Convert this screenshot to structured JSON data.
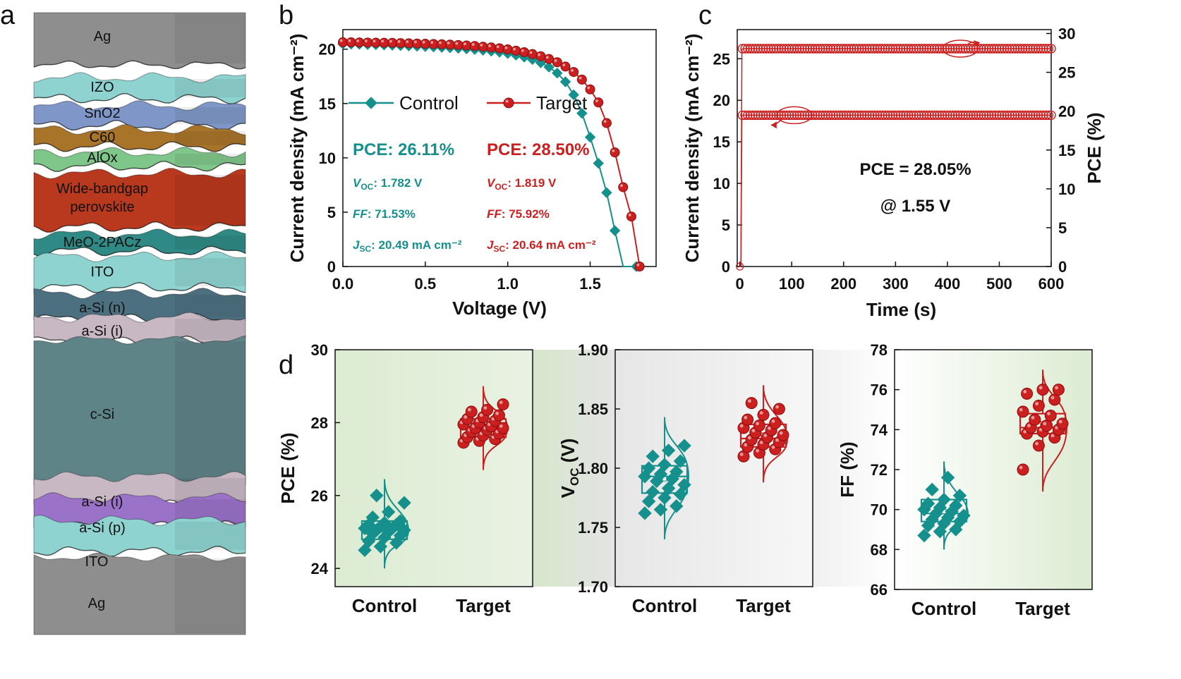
{
  "panel_letters": [
    "a",
    "b",
    "c",
    "d"
  ],
  "stack": {
    "layers": [
      {
        "name": "Ag",
        "color": "#8e8e8e"
      },
      {
        "name": "IZO",
        "color": "#8fd3d0"
      },
      {
        "name": "SnO2",
        "color": "#7f97c8"
      },
      {
        "name": "C60",
        "color": "#a8742a"
      },
      {
        "name": "AlOx",
        "color": "#7fc68a"
      },
      {
        "name": "Wide-bandgap perovskite",
        "color": "#b8391e"
      },
      {
        "name": "MeO-2PACz",
        "color": "#2f8a86"
      },
      {
        "name": "ITO",
        "color": "#8fd3d0"
      },
      {
        "name": "a-Si (n)",
        "color": "#4d7080"
      },
      {
        "name": "a-Si (i)",
        "color": "#c8b8c4"
      },
      {
        "name": "c-Si",
        "color": "#5f8488"
      },
      {
        "name": "a-Si (i)",
        "color": "#c8b8c4"
      },
      {
        "name": "a-Si (p)",
        "color": "#9a73c9"
      },
      {
        "name": "ITO",
        "color": "#8fd3d0"
      },
      {
        "name": "Ag",
        "color": "#8e8e8e"
      }
    ]
  },
  "colors": {
    "control": "#16908c",
    "target": "#cc1f1f"
  },
  "chart_data": [
    {
      "panel": "b",
      "type": "line",
      "xlabel": "Voltage (V)",
      "ylabel": "Current density (mA cm⁻²)",
      "xlim": [
        0,
        1.9
      ],
      "ylim": [
        0,
        21.8
      ],
      "xticks": [
        0.0,
        0.5,
        1.0,
        1.5
      ],
      "yticks": [
        0,
        5,
        10,
        15,
        20
      ],
      "legend_position": "upper-center",
      "series": [
        {
          "name": "Control",
          "marker": "diamond",
          "x": [
            0,
            0.05,
            0.1,
            0.15,
            0.2,
            0.25,
            0.3,
            0.35,
            0.4,
            0.45,
            0.5,
            0.55,
            0.6,
            0.65,
            0.7,
            0.75,
            0.8,
            0.85,
            0.9,
            0.95,
            1.0,
            1.05,
            1.1,
            1.15,
            1.2,
            1.25,
            1.3,
            1.35,
            1.4,
            1.45,
            1.5,
            1.55,
            1.6,
            1.65,
            1.7,
            1.75,
            1.78
          ],
          "y": [
            20.49,
            20.47,
            20.45,
            20.43,
            20.41,
            20.39,
            20.36,
            20.33,
            20.3,
            20.27,
            20.24,
            20.21,
            20.17,
            20.13,
            20.08,
            20.03,
            19.97,
            19.9,
            19.82,
            19.72,
            19.6,
            19.45,
            19.27,
            19.05,
            18.75,
            18.35,
            17.8,
            17.0,
            15.8,
            14.1,
            11.9,
            9.5,
            6.8,
            3.3,
            0.0,
            0.0,
            0.0
          ]
        },
        {
          "name": "Target",
          "marker": "circle",
          "x": [
            0,
            0.05,
            0.1,
            0.15,
            0.2,
            0.25,
            0.3,
            0.35,
            0.4,
            0.45,
            0.5,
            0.55,
            0.6,
            0.65,
            0.7,
            0.75,
            0.8,
            0.85,
            0.9,
            0.95,
            1.0,
            1.05,
            1.1,
            1.15,
            1.2,
            1.25,
            1.3,
            1.35,
            1.4,
            1.45,
            1.5,
            1.55,
            1.6,
            1.65,
            1.7,
            1.75,
            1.8
          ],
          "y": [
            20.64,
            20.63,
            20.62,
            20.61,
            20.6,
            20.59,
            20.58,
            20.56,
            20.54,
            20.52,
            20.5,
            20.48,
            20.45,
            20.42,
            20.38,
            20.34,
            20.29,
            20.23,
            20.16,
            20.08,
            19.98,
            19.86,
            19.72,
            19.55,
            19.35,
            19.1,
            18.8,
            18.4,
            17.9,
            17.2,
            16.3,
            15.1,
            13.2,
            10.5,
            7.3,
            4.6,
            0.0
          ]
        }
      ],
      "annotations": {
        "control": {
          "pce": "PCE: 26.11%",
          "voc": ": 1.782 V",
          "ff": ": 71.53%",
          "jsc": ": 20.49 mA cm⁻²"
        },
        "target": {
          "pce": "PCE: 28.50%",
          "voc": ": 1.819 V",
          "ff": ": 75.92%",
          "jsc": ": 20.64 mA cm⁻²"
        },
        "voc_sym": "V",
        "voc_sub": "OC",
        "ff_sym": "FF",
        "jsc_sym": "J",
        "jsc_sub": "SC"
      }
    },
    {
      "panel": "c",
      "type": "line",
      "xlabel": "Time (s)",
      "ylabel": "Current density (mA cm⁻²)",
      "y2label": "PCE (%)",
      "xlim": [
        -5,
        600
      ],
      "ylim": [
        0,
        28.5
      ],
      "y2lim": [
        0,
        30.5
      ],
      "xticks": [
        0,
        100,
        200,
        300,
        400,
        500,
        600
      ],
      "yticks": [
        0,
        5,
        10,
        15,
        20,
        25
      ],
      "y2ticks": [
        0,
        5,
        10,
        15,
        20,
        25,
        30
      ],
      "series": [
        {
          "name": "Current density",
          "axis": "left",
          "value": 18.2,
          "x_start": 5,
          "x_end": 600
        },
        {
          "name": "PCE",
          "axis": "right",
          "value": 28.05,
          "x_start": 5,
          "x_end": 600
        }
      ],
      "annotation_line1": "PCE = 28.05%",
      "annotation_line2": "@ 1.55 V"
    },
    {
      "panel": "d",
      "type": "box",
      "plots": [
        {
          "ylabel": "PCE (%)",
          "ylim": [
            23.5,
            30
          ],
          "yticks": [
            24,
            26,
            28,
            30
          ],
          "tick_decimals": 0,
          "categories": [
            "Control",
            "Target"
          ],
          "control": {
            "q1": 24.8,
            "median": 25.05,
            "q3": 25.3,
            "mean": 25.1,
            "whisker_low": 24.0,
            "whisker_high": 26.45,
            "points": [
              24.5,
              24.6,
              24.7,
              24.75,
              24.85,
              24.9,
              24.95,
              25.0,
              25.05,
              25.05,
              25.1,
              25.1,
              25.15,
              25.2,
              25.2,
              25.25,
              25.3,
              25.4,
              25.55,
              25.8,
              26.0
            ]
          },
          "target": {
            "q1": 27.6,
            "median": 27.85,
            "q3": 28.1,
            "mean": 27.9,
            "whisker_low": 26.7,
            "whisker_high": 29.0,
            "points": [
              27.45,
              27.5,
              27.55,
              27.6,
              27.65,
              27.7,
              27.75,
              27.8,
              27.85,
              27.85,
              27.9,
              27.95,
              28.0,
              28.05,
              28.1,
              28.15,
              28.2,
              28.3,
              28.35,
              28.5
            ]
          }
        },
        {
          "ylabel": "V_OC (V)",
          "ylim": [
            1.7,
            1.9
          ],
          "yticks": [
            1.7,
            1.75,
            1.8,
            1.85,
            1.9
          ],
          "tick_decimals": 2,
          "categories": [
            "Control",
            "Target"
          ],
          "control": {
            "q1": 1.779,
            "median": 1.793,
            "q3": 1.802,
            "mean": 1.791,
            "whisker_low": 1.74,
            "whisker_high": 1.843,
            "points": [
              1.762,
              1.765,
              1.768,
              1.772,
              1.775,
              1.778,
              1.78,
              1.783,
              1.786,
              1.789,
              1.791,
              1.793,
              1.795,
              1.797,
              1.8,
              1.803,
              1.806,
              1.81,
              1.815,
              1.819
            ]
          },
          "target": {
            "q1": 1.818,
            "median": 1.825,
            "q3": 1.837,
            "mean": 1.828,
            "whisker_low": 1.788,
            "whisker_high": 1.87,
            "points": [
              1.81,
              1.813,
              1.816,
              1.818,
              1.82,
              1.822,
              1.824,
              1.826,
              1.828,
              1.83,
              1.832,
              1.834,
              1.836,
              1.838,
              1.841,
              1.845,
              1.85,
              1.855
            ]
          }
        },
        {
          "ylabel": "FF (%)",
          "ylim": [
            66,
            78
          ],
          "yticks": [
            66,
            68,
            70,
            72,
            74,
            76,
            78
          ],
          "tick_decimals": 0,
          "categories": [
            "Control",
            "Target"
          ],
          "control": {
            "q1": 69.4,
            "median": 69.8,
            "q3": 70.5,
            "mean": 69.9,
            "whisker_low": 68.0,
            "whisker_high": 72.4,
            "points": [
              68.7,
              68.9,
              69.0,
              69.2,
              69.3,
              69.4,
              69.5,
              69.6,
              69.7,
              69.8,
              69.9,
              70.0,
              70.1,
              70.2,
              70.3,
              70.5,
              70.7,
              71.0,
              71.6
            ]
          },
          "target": {
            "q1": 73.8,
            "median": 74.1,
            "q3": 74.8,
            "mean": 74.3,
            "whisker_low": 70.9,
            "whisker_high": 77.0,
            "points": [
              72.0,
              73.2,
              73.6,
              73.8,
              73.9,
              74.0,
              74.1,
              74.2,
              74.3,
              74.5,
              74.7,
              74.9,
              75.2,
              75.5,
              75.8,
              76.0,
              76.0
            ]
          }
        }
      ]
    }
  ]
}
